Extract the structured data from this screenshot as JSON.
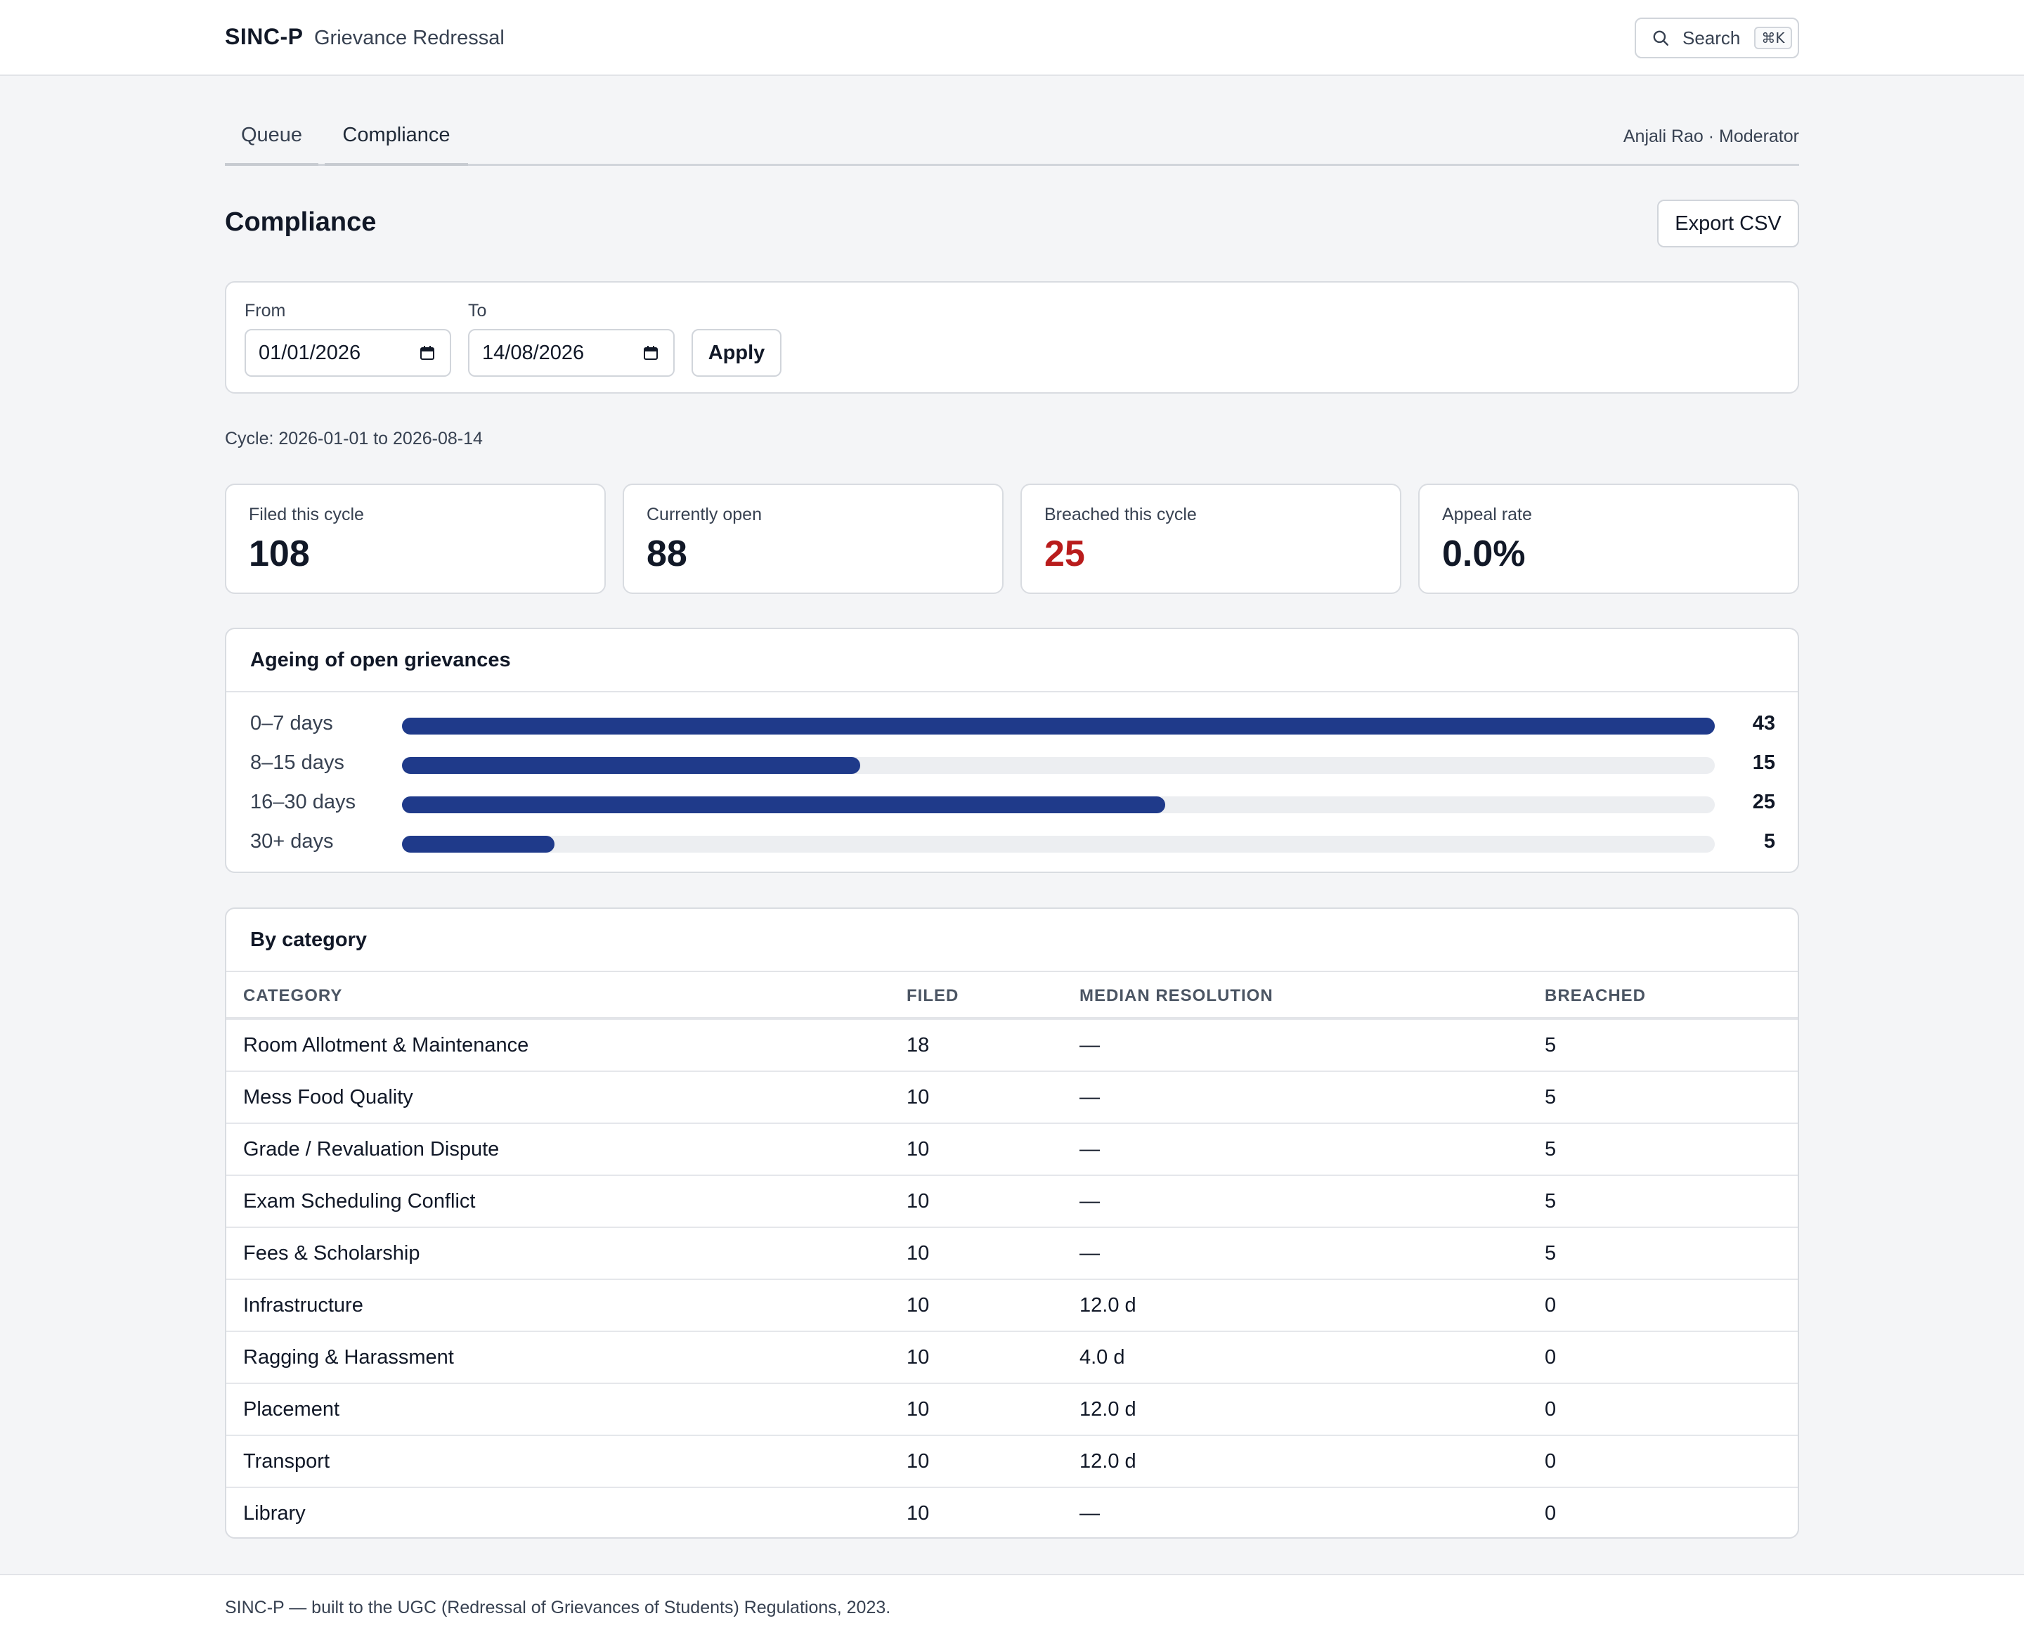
{
  "header": {
    "brand": "SINC-P",
    "subtitle": "Grievance Redressal",
    "search_label": "Search",
    "search_shortcut": "⌘K"
  },
  "tabs": [
    {
      "label": "Queue"
    },
    {
      "label": "Compliance"
    }
  ],
  "user": "Anjali Rao · Moderator",
  "page": {
    "title": "Compliance",
    "export_label": "Export CSV"
  },
  "filter": {
    "from_label": "From",
    "from_value": "01/01/2026",
    "to_label": "To",
    "to_value": "14/08/2026",
    "apply_label": "Apply"
  },
  "cycle_text": "Cycle: 2026-01-01 to 2026-08-14",
  "stats": [
    {
      "label": "Filed this cycle",
      "value": "108"
    },
    {
      "label": "Currently open",
      "value": "88"
    },
    {
      "label": "Breached this cycle",
      "value": "25",
      "color": "#b91c1c"
    },
    {
      "label": "Appeal rate",
      "value": "0.0%"
    }
  ],
  "ageing": {
    "title": "Ageing of open grievances",
    "max": 43,
    "bar_color": "#1f3a8a",
    "rows": [
      {
        "label": "0–7 days",
        "count": "43",
        "value": 43
      },
      {
        "label": "8–15 days",
        "count": "15",
        "value": 15
      },
      {
        "label": "16–30 days",
        "count": "25",
        "value": 25
      },
      {
        "label": "30+ days",
        "count": "5",
        "value": 5
      }
    ]
  },
  "category": {
    "title": "By category",
    "headers": [
      "CATEGORY",
      "FILED",
      "MEDIAN RESOLUTION",
      "BREACHED"
    ],
    "rows": [
      [
        "Room Allotment & Maintenance",
        "18",
        "—",
        "5"
      ],
      [
        "Mess Food Quality",
        "10",
        "—",
        "5"
      ],
      [
        "Grade / Revaluation Dispute",
        "10",
        "—",
        "5"
      ],
      [
        "Exam Scheduling Conflict",
        "10",
        "—",
        "5"
      ],
      [
        "Fees & Scholarship",
        "10",
        "—",
        "5"
      ],
      [
        "Infrastructure",
        "10",
        "12.0 d",
        "0"
      ],
      [
        "Ragging & Harassment",
        "10",
        "4.0 d",
        "0"
      ],
      [
        "Placement",
        "10",
        "12.0 d",
        "0"
      ],
      [
        "Transport",
        "10",
        "12.0 d",
        "0"
      ],
      [
        "Library",
        "10",
        "—",
        "0"
      ]
    ]
  },
  "footer": "SINC-P — built to the UGC (Redressal of Grievances of Students) Regulations, 2023."
}
